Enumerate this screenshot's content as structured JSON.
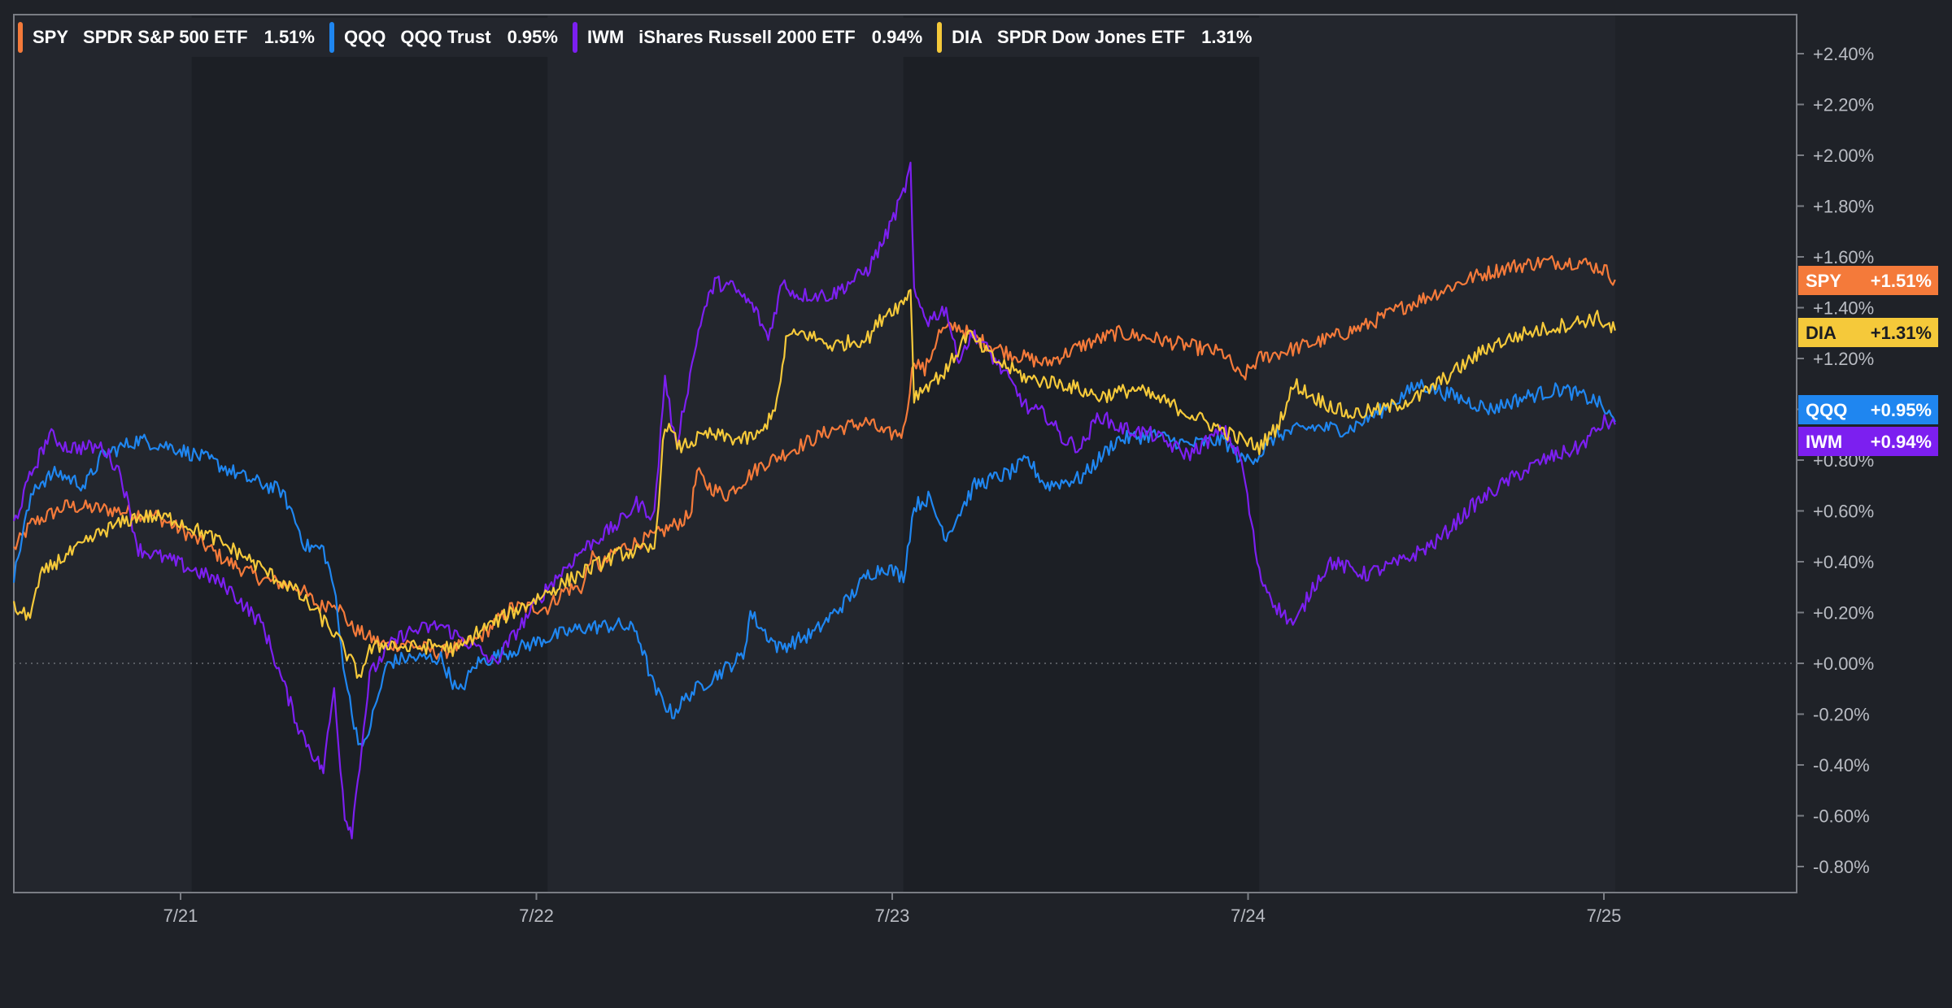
{
  "chart_data": {
    "type": "line",
    "x_ticks": [
      "7/21",
      "7/22",
      "7/23",
      "7/24",
      "7/25"
    ],
    "ylim": [
      -0.9,
      2.5
    ],
    "y_ticks": [
      "+2.40%",
      "+2.20%",
      "+2.00%",
      "+1.80%",
      "+1.60%",
      "+1.40%",
      "+1.20%",
      "+1.00%",
      "+0.80%",
      "+0.60%",
      "+0.40%",
      "+0.20%",
      "+0.00%",
      "-0.20%",
      "-0.40%",
      "-0.60%",
      "-0.80%"
    ],
    "y_tick_values": [
      2.4,
      2.2,
      2.0,
      1.8,
      1.6,
      1.4,
      1.2,
      1.0,
      0.8,
      0.6,
      0.4,
      0.2,
      0.0,
      -0.2,
      -0.4,
      -0.6,
      -0.8
    ],
    "zero_line": true,
    "legend_position": "top-left",
    "series": [
      {
        "ticker": "SPY",
        "name": "SPDR S&P 500 ETF",
        "change": "1.51%",
        "badge": "+1.51%",
        "color": "#f47a3a",
        "badge_text": "light",
        "points": [
          [
            0.0,
            0.45
          ],
          [
            0.05,
            0.55
          ],
          [
            0.15,
            0.62
          ],
          [
            0.3,
            0.6
          ],
          [
            0.4,
            0.58
          ],
          [
            0.5,
            0.5
          ],
          [
            0.6,
            0.4
          ],
          [
            0.7,
            0.33
          ],
          [
            0.8,
            0.3
          ],
          [
            0.86,
            0.22
          ],
          [
            0.9,
            0.25
          ],
          [
            0.95,
            0.14
          ],
          [
            1.0,
            0.1
          ],
          [
            1.05,
            0.07
          ],
          [
            1.1,
            0.08
          ],
          [
            1.2,
            0.04
          ],
          [
            1.3,
            0.09
          ],
          [
            1.4,
            0.22
          ],
          [
            1.5,
            0.22
          ],
          [
            1.55,
            0.29
          ],
          [
            1.6,
            0.3
          ],
          [
            1.62,
            0.42
          ],
          [
            1.65,
            0.38
          ],
          [
            1.7,
            0.45
          ],
          [
            1.8,
            0.5
          ],
          [
            1.9,
            0.58
          ],
          [
            1.92,
            0.75
          ],
          [
            1.95,
            0.7
          ],
          [
            2.0,
            0.66
          ],
          [
            2.1,
            0.78
          ],
          [
            2.2,
            0.85
          ],
          [
            2.3,
            0.92
          ],
          [
            2.4,
            0.95
          ],
          [
            2.45,
            0.9
          ],
          [
            2.5,
            0.91
          ],
          [
            2.53,
            1.2
          ],
          [
            2.56,
            1.15
          ],
          [
            2.6,
            1.3
          ],
          [
            2.65,
            1.33
          ],
          [
            2.7,
            1.28
          ],
          [
            2.8,
            1.22
          ],
          [
            2.9,
            1.18
          ],
          [
            3.0,
            1.25
          ],
          [
            3.1,
            1.3
          ],
          [
            3.2,
            1.28
          ],
          [
            3.3,
            1.25
          ],
          [
            3.4,
            1.22
          ],
          [
            3.45,
            1.12
          ],
          [
            3.5,
            1.2
          ],
          [
            3.6,
            1.24
          ],
          [
            3.7,
            1.28
          ],
          [
            3.8,
            1.33
          ],
          [
            3.9,
            1.4
          ],
          [
            4.0,
            1.46
          ],
          [
            4.1,
            1.52
          ],
          [
            4.2,
            1.56
          ],
          [
            4.3,
            1.58
          ],
          [
            4.4,
            1.58
          ],
          [
            4.47,
            1.55
          ],
          [
            4.5,
            1.51
          ]
        ]
      },
      {
        "ticker": "QQQ",
        "name": "QQQ Trust",
        "change": "0.95%",
        "badge": "+0.95%",
        "color": "#1f86f0",
        "badge_text": "light",
        "points": [
          [
            0.0,
            0.33
          ],
          [
            0.03,
            0.55
          ],
          [
            0.06,
            0.7
          ],
          [
            0.12,
            0.75
          ],
          [
            0.2,
            0.7
          ],
          [
            0.25,
            0.82
          ],
          [
            0.35,
            0.88
          ],
          [
            0.45,
            0.85
          ],
          [
            0.55,
            0.8
          ],
          [
            0.65,
            0.73
          ],
          [
            0.75,
            0.68
          ],
          [
            0.78,
            0.6
          ],
          [
            0.82,
            0.46
          ],
          [
            0.87,
            0.45
          ],
          [
            0.9,
            0.3
          ],
          [
            0.92,
            0.06
          ],
          [
            0.95,
            -0.2
          ],
          [
            0.98,
            -0.35
          ],
          [
            1.02,
            -0.15
          ],
          [
            1.05,
            0.0
          ],
          [
            1.1,
            0.02
          ],
          [
            1.2,
            0.02
          ],
          [
            1.25,
            -0.12
          ],
          [
            1.3,
            0.0
          ],
          [
            1.4,
            0.05
          ],
          [
            1.5,
            0.1
          ],
          [
            1.6,
            0.14
          ],
          [
            1.7,
            0.15
          ],
          [
            1.75,
            0.13
          ],
          [
            1.8,
            -0.1
          ],
          [
            1.85,
            -0.2
          ],
          [
            1.9,
            -0.12
          ],
          [
            2.0,
            -0.02
          ],
          [
            2.05,
            0.03
          ],
          [
            2.07,
            0.2
          ],
          [
            2.1,
            0.14
          ],
          [
            2.15,
            0.06
          ],
          [
            2.25,
            0.12
          ],
          [
            2.35,
            0.26
          ],
          [
            2.4,
            0.35
          ],
          [
            2.45,
            0.38
          ],
          [
            2.5,
            0.34
          ],
          [
            2.53,
            0.62
          ],
          [
            2.57,
            0.65
          ],
          [
            2.62,
            0.5
          ],
          [
            2.7,
            0.7
          ],
          [
            2.8,
            0.75
          ],
          [
            2.85,
            0.8
          ],
          [
            2.9,
            0.7
          ],
          [
            3.0,
            0.73
          ],
          [
            3.1,
            0.88
          ],
          [
            3.2,
            0.9
          ],
          [
            3.3,
            0.86
          ],
          [
            3.4,
            0.88
          ],
          [
            3.45,
            0.8
          ],
          [
            3.5,
            0.82
          ],
          [
            3.55,
            0.9
          ],
          [
            3.65,
            0.93
          ],
          [
            3.75,
            0.92
          ],
          [
            3.85,
            1.0
          ],
          [
            3.95,
            1.1
          ],
          [
            4.05,
            1.05
          ],
          [
            4.15,
            1.0
          ],
          [
            4.25,
            1.05
          ],
          [
            4.35,
            1.08
          ],
          [
            4.45,
            1.03
          ],
          [
            4.5,
            0.95
          ]
        ]
      },
      {
        "ticker": "IWM",
        "name": "iShares Russell 2000 ETF",
        "change": "0.94%",
        "badge": "+0.94%",
        "color": "#7c1ff0",
        "badge_text": "light",
        "points": [
          [
            0.0,
            0.55
          ],
          [
            0.05,
            0.75
          ],
          [
            0.1,
            0.9
          ],
          [
            0.15,
            0.85
          ],
          [
            0.25,
            0.85
          ],
          [
            0.3,
            0.75
          ],
          [
            0.35,
            0.45
          ],
          [
            0.45,
            0.4
          ],
          [
            0.55,
            0.34
          ],
          [
            0.6,
            0.3
          ],
          [
            0.7,
            0.15
          ],
          [
            0.75,
            -0.05
          ],
          [
            0.8,
            -0.25
          ],
          [
            0.85,
            -0.38
          ],
          [
            0.87,
            -0.42
          ],
          [
            0.9,
            -0.1
          ],
          [
            0.93,
            -0.6
          ],
          [
            0.95,
            -0.66
          ],
          [
            1.0,
            -0.05
          ],
          [
            1.05,
            0.06
          ],
          [
            1.1,
            0.12
          ],
          [
            1.2,
            0.15
          ],
          [
            1.3,
            0.06
          ],
          [
            1.35,
            0.0
          ],
          [
            1.4,
            0.1
          ],
          [
            1.5,
            0.3
          ],
          [
            1.6,
            0.45
          ],
          [
            1.7,
            0.55
          ],
          [
            1.75,
            0.63
          ],
          [
            1.8,
            0.58
          ],
          [
            1.83,
            1.13
          ],
          [
            1.86,
            0.85
          ],
          [
            1.9,
            1.13
          ],
          [
            1.93,
            1.35
          ],
          [
            1.97,
            1.5
          ],
          [
            2.02,
            1.48
          ],
          [
            2.08,
            1.4
          ],
          [
            2.12,
            1.28
          ],
          [
            2.16,
            1.5
          ],
          [
            2.2,
            1.45
          ],
          [
            2.3,
            1.45
          ],
          [
            2.4,
            1.55
          ],
          [
            2.45,
            1.68
          ],
          [
            2.5,
            1.85
          ],
          [
            2.52,
            1.95
          ],
          [
            2.53,
            1.45
          ],
          [
            2.57,
            1.35
          ],
          [
            2.62,
            1.4
          ],
          [
            2.65,
            1.2
          ],
          [
            2.7,
            1.3
          ],
          [
            2.78,
            1.15
          ],
          [
            2.85,
            1.0
          ],
          [
            2.9,
            0.98
          ],
          [
            2.95,
            0.88
          ],
          [
            3.0,
            0.85
          ],
          [
            3.05,
            0.98
          ],
          [
            3.1,
            0.93
          ],
          [
            3.2,
            0.9
          ],
          [
            3.3,
            0.82
          ],
          [
            3.4,
            0.92
          ],
          [
            3.45,
            0.8
          ],
          [
            3.5,
            0.35
          ],
          [
            3.55,
            0.22
          ],
          [
            3.6,
            0.15
          ],
          [
            3.65,
            0.3
          ],
          [
            3.7,
            0.4
          ],
          [
            3.8,
            0.35
          ],
          [
            3.9,
            0.4
          ],
          [
            4.0,
            0.48
          ],
          [
            4.1,
            0.62
          ],
          [
            4.2,
            0.72
          ],
          [
            4.3,
            0.8
          ],
          [
            4.4,
            0.85
          ],
          [
            4.47,
            0.95
          ],
          [
            4.5,
            0.94
          ]
        ]
      },
      {
        "ticker": "DIA",
        "name": "SPDR Dow Jones ETF",
        "change": "1.31%",
        "badge": "+1.31%",
        "color": "#f5c93a",
        "badge_text": "dark",
        "points": [
          [
            0.0,
            0.22
          ],
          [
            0.04,
            0.18
          ],
          [
            0.08,
            0.35
          ],
          [
            0.12,
            0.4
          ],
          [
            0.18,
            0.45
          ],
          [
            0.25,
            0.52
          ],
          [
            0.35,
            0.58
          ],
          [
            0.45,
            0.57
          ],
          [
            0.55,
            0.5
          ],
          [
            0.65,
            0.42
          ],
          [
            0.72,
            0.35
          ],
          [
            0.78,
            0.3
          ],
          [
            0.85,
            0.2
          ],
          [
            0.9,
            0.12
          ],
          [
            0.93,
            0.05
          ],
          [
            0.97,
            -0.05
          ],
          [
            1.0,
            0.05
          ],
          [
            1.05,
            0.08
          ],
          [
            1.1,
            0.06
          ],
          [
            1.2,
            0.07
          ],
          [
            1.25,
            0.05
          ],
          [
            1.3,
            0.12
          ],
          [
            1.4,
            0.2
          ],
          [
            1.5,
            0.28
          ],
          [
            1.6,
            0.36
          ],
          [
            1.7,
            0.43
          ],
          [
            1.8,
            0.45
          ],
          [
            1.83,
            0.95
          ],
          [
            1.87,
            0.85
          ],
          [
            1.95,
            0.9
          ],
          [
            2.05,
            0.88
          ],
          [
            2.1,
            0.9
          ],
          [
            2.15,
            1.05
          ],
          [
            2.17,
            1.28
          ],
          [
            2.22,
            1.3
          ],
          [
            2.3,
            1.25
          ],
          [
            2.4,
            1.28
          ],
          [
            2.45,
            1.38
          ],
          [
            2.5,
            1.42
          ],
          [
            2.52,
            1.48
          ],
          [
            2.53,
            1.05
          ],
          [
            2.57,
            1.1
          ],
          [
            2.62,
            1.15
          ],
          [
            2.68,
            1.3
          ],
          [
            2.75,
            1.2
          ],
          [
            2.85,
            1.12
          ],
          [
            2.95,
            1.1
          ],
          [
            3.05,
            1.05
          ],
          [
            3.15,
            1.08
          ],
          [
            3.25,
            1.02
          ],
          [
            3.35,
            0.95
          ],
          [
            3.45,
            0.88
          ],
          [
            3.5,
            0.85
          ],
          [
            3.55,
            0.93
          ],
          [
            3.6,
            1.1
          ],
          [
            3.65,
            1.05
          ],
          [
            3.75,
            0.98
          ],
          [
            3.85,
            1.0
          ],
          [
            3.95,
            1.05
          ],
          [
            4.05,
            1.15
          ],
          [
            4.15,
            1.25
          ],
          [
            4.25,
            1.3
          ],
          [
            4.35,
            1.33
          ],
          [
            4.45,
            1.36
          ],
          [
            4.5,
            1.31
          ]
        ]
      }
    ]
  }
}
